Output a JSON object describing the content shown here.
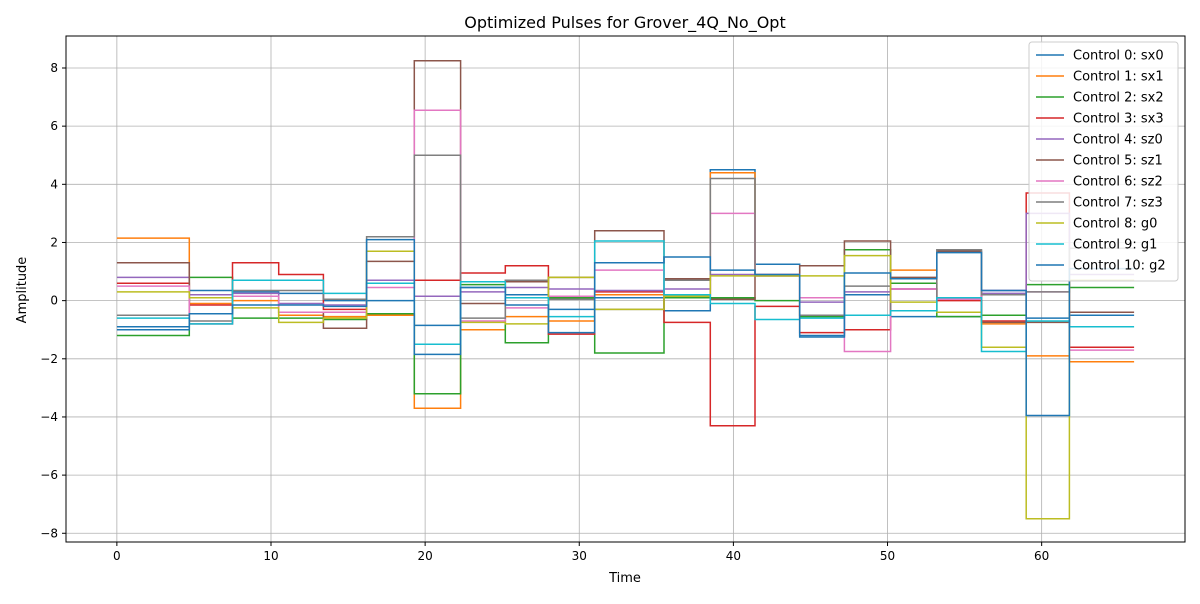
{
  "chart_data": {
    "type": "line",
    "title": "Optimized Pulses for Grover_4Q_No_Opt",
    "xlabel": "Time",
    "ylabel": "Amplitude",
    "xlim": [
      -3.3,
      69.3
    ],
    "ylim": [
      -8.3,
      9.1
    ],
    "xticks": [
      0,
      10,
      20,
      30,
      40,
      50,
      60
    ],
    "yticks": [
      -8,
      -6,
      -4,
      -2,
      0,
      2,
      4,
      6,
      8
    ],
    "xtick_labels": [
      "0",
      "10",
      "20",
      "30",
      "40",
      "50",
      "60"
    ],
    "ytick_labels": [
      "−8",
      "−6",
      "−4",
      "−2",
      "0",
      "2",
      "4",
      "6",
      "8"
    ],
    "grid": true,
    "legend_position": "top-right",
    "step": "post",
    "x_end": 66,
    "series": [
      {
        "name": "Control 0: sx0",
        "color": "#1f77b4",
        "x": [
          0,
          4.7,
          7.5,
          10.5,
          13.4,
          16.2,
          19.3,
          22.3,
          25.2,
          28.0,
          31.0,
          35.5,
          38.5,
          41.4,
          44.3,
          47.2,
          50.2,
          53.2,
          56.1,
          59.0,
          61.8
        ],
        "y": [
          -0.9,
          0.35,
          0.3,
          0.25,
          0.0,
          0.0,
          -0.85,
          0.45,
          0.2,
          -0.3,
          0.1,
          -0.35,
          4.5,
          1.25,
          -1.2,
          0.2,
          -0.55,
          -0.55,
          0.35,
          -0.6,
          -0.5
        ]
      },
      {
        "name": "Control 1: sx1",
        "color": "#ff7f0e",
        "x": [
          0,
          4.7,
          7.5,
          10.5,
          13.4,
          16.2,
          19.3,
          22.3,
          25.2,
          28.0,
          31.0,
          35.5,
          38.5,
          41.4,
          44.3,
          47.2,
          50.2,
          53.2,
          56.1,
          59.0,
          61.8
        ],
        "y": [
          2.15,
          -0.1,
          0.0,
          -0.5,
          -0.55,
          -0.5,
          -3.7,
          -1.0,
          -0.55,
          -0.7,
          0.2,
          0.2,
          4.4,
          0.85,
          -0.5,
          -0.5,
          1.05,
          -0.4,
          -0.8,
          -1.9,
          -2.1
        ]
      },
      {
        "name": "Control 2: sx2",
        "color": "#2ca02c",
        "x": [
          0,
          4.7,
          7.5,
          10.5,
          13.4,
          16.2,
          19.3,
          22.3,
          25.2,
          28.0,
          31.0,
          35.5,
          38.5,
          41.4,
          44.3,
          47.2,
          50.2,
          53.2,
          56.1,
          59.0,
          61.8
        ],
        "y": [
          -1.2,
          0.8,
          -0.6,
          -0.6,
          -0.65,
          -0.45,
          -3.2,
          0.55,
          -1.45,
          0.1,
          -1.8,
          0.1,
          0.1,
          0.0,
          -0.55,
          1.75,
          0.6,
          -0.55,
          -0.5,
          0.55,
          0.45
        ]
      },
      {
        "name": "Control 3: sx3",
        "color": "#d62728",
        "x": [
          0,
          4.7,
          7.5,
          10.5,
          13.4,
          16.2,
          19.3,
          22.3,
          25.2,
          28.0,
          31.0,
          35.5,
          38.5,
          41.4,
          44.3,
          47.2,
          50.2,
          53.2,
          56.1,
          59.0,
          61.8
        ],
        "y": [
          0.6,
          -0.15,
          1.3,
          0.9,
          -0.3,
          0.6,
          0.7,
          0.95,
          1.2,
          -1.15,
          0.3,
          -0.75,
          -4.3,
          -0.2,
          -1.1,
          -1.0,
          0.4,
          0.0,
          -0.7,
          3.7,
          -1.6
        ]
      },
      {
        "name": "Control 4: sz0",
        "color": "#9467bd",
        "x": [
          0,
          4.7,
          7.5,
          10.5,
          13.4,
          16.2,
          19.3,
          22.3,
          25.2,
          28.0,
          31.0,
          35.5,
          38.5,
          41.4,
          44.3,
          47.2,
          50.2,
          53.2,
          56.1,
          59.0,
          61.8
        ],
        "y": [
          0.8,
          0.2,
          0.25,
          -0.1,
          -0.15,
          0.7,
          0.15,
          0.3,
          0.45,
          0.4,
          0.35,
          0.4,
          0.9,
          0.85,
          -0.05,
          0.3,
          0.4,
          0.1,
          0.25,
          3.0,
          0.9
        ]
      },
      {
        "name": "Control 5: sz1",
        "color": "#8c564b",
        "x": [
          0,
          4.7,
          7.5,
          10.5,
          13.4,
          16.2,
          19.3,
          22.3,
          25.2,
          28.0,
          31.0,
          35.5,
          38.5,
          41.4,
          44.3,
          47.2,
          50.2,
          53.2,
          56.1,
          59.0,
          61.8
        ],
        "y": [
          1.3,
          -0.8,
          0.15,
          -0.4,
          -0.95,
          1.35,
          8.25,
          -0.1,
          0.65,
          0.8,
          2.4,
          0.75,
          0.05,
          0.9,
          1.2,
          2.05,
          0.8,
          1.7,
          -0.75,
          -0.75,
          -0.4
        ]
      },
      {
        "name": "Control 6: sz2",
        "color": "#e377c2",
        "x": [
          0,
          4.7,
          7.5,
          10.5,
          13.4,
          16.2,
          19.3,
          22.3,
          25.2,
          28.0,
          31.0,
          35.5,
          38.5,
          41.4,
          44.3,
          47.2,
          50.2,
          53.2,
          56.1,
          59.0,
          61.8
        ],
        "y": [
          0.5,
          -0.8,
          0.15,
          -0.4,
          -0.4,
          0.45,
          6.55,
          -0.7,
          -0.25,
          0.15,
          1.05,
          0.2,
          3.0,
          0.9,
          0.1,
          -1.75,
          0.4,
          0.05,
          0.35,
          0.3,
          -1.7
        ]
      },
      {
        "name": "Control 7: sz3",
        "color": "#7f7f7f",
        "x": [
          0,
          4.7,
          7.5,
          10.5,
          13.4,
          16.2,
          19.3,
          22.3,
          25.2,
          28.0,
          31.0,
          35.5,
          38.5,
          41.4,
          44.3,
          47.2,
          50.2,
          53.2,
          56.1,
          59.0,
          61.8
        ],
        "y": [
          -0.5,
          -0.7,
          0.35,
          0.35,
          0.05,
          2.2,
          5.0,
          -0.6,
          0.7,
          0.05,
          -0.3,
          0.7,
          4.2,
          0.85,
          -0.5,
          0.5,
          -0.35,
          1.75,
          0.2,
          0.3,
          1.8
        ]
      },
      {
        "name": "Control 8: g0",
        "color": "#bcbd22",
        "x": [
          0,
          4.7,
          7.5,
          10.5,
          13.4,
          16.2,
          19.3,
          22.3,
          25.2,
          28.0,
          31.0,
          35.5,
          38.5,
          41.4,
          44.3,
          47.2,
          50.2,
          53.2,
          56.1,
          59.0,
          61.8
        ],
        "y": [
          0.3,
          0.1,
          -0.25,
          -0.75,
          -0.6,
          1.7,
          -1.5,
          -0.75,
          -0.8,
          0.8,
          -0.3,
          0.15,
          0.85,
          0.85,
          0.85,
          1.55,
          -0.05,
          -0.4,
          -1.6,
          -7.5,
          0.7
        ]
      },
      {
        "name": "Control 9: g1",
        "color": "#17becf",
        "x": [
          0,
          4.7,
          7.5,
          10.5,
          13.4,
          16.2,
          19.3,
          22.3,
          25.2,
          28.0,
          31.0,
          35.5,
          38.5,
          41.4,
          44.3,
          47.2,
          50.2,
          53.2,
          56.1,
          59.0,
          61.8
        ],
        "y": [
          -0.6,
          -0.8,
          0.7,
          0.7,
          0.25,
          0.6,
          -1.5,
          0.65,
          0.1,
          -0.55,
          2.05,
          0.2,
          -0.1,
          -0.65,
          -0.6,
          -0.5,
          -0.35,
          0.1,
          -1.75,
          -0.7,
          -0.9
        ]
      },
      {
        "name": "Control 10: g2",
        "color": "#1f77b4",
        "x": [
          0,
          4.7,
          7.5,
          10.5,
          13.4,
          16.2,
          19.3,
          22.3,
          25.2,
          28.0,
          31.0,
          35.5,
          38.5,
          41.4,
          44.3,
          47.2,
          50.2,
          53.2,
          56.1,
          59.0,
          61.8
        ],
        "y": [
          -1.0,
          -0.45,
          -0.15,
          -0.15,
          -0.2,
          2.1,
          -1.85,
          0.45,
          -0.15,
          -1.1,
          1.3,
          1.5,
          1.05,
          0.9,
          -1.25,
          0.95,
          0.75,
          1.65,
          0.35,
          -3.95,
          1.1
        ]
      }
    ]
  }
}
